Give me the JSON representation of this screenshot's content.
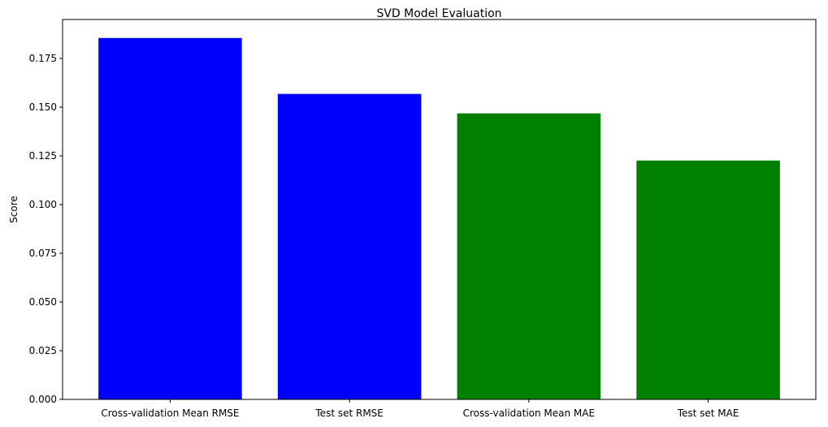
{
  "chart_data": {
    "type": "bar",
    "title": "SVD Model Evaluation",
    "xlabel": "",
    "ylabel": "Score",
    "categories": [
      "Cross-validation Mean RMSE",
      "Test set RMSE",
      "Cross-validation Mean MAE",
      "Test set MAE"
    ],
    "values": [
      0.1855,
      0.1568,
      0.1468,
      0.1226
    ],
    "bar_colors": [
      "#0000ff",
      "#0000ff",
      "#008000",
      "#008000"
    ],
    "ylim": [
      0,
      0.195
    ],
    "yticks": [
      0.0,
      0.025,
      0.05,
      0.075,
      0.1,
      0.125,
      0.15,
      0.175
    ],
    "ytick_labels": [
      "0.000",
      "0.025",
      "0.050",
      "0.075",
      "0.100",
      "0.125",
      "0.150",
      "0.175"
    ],
    "grid": false,
    "legend": null
  }
}
